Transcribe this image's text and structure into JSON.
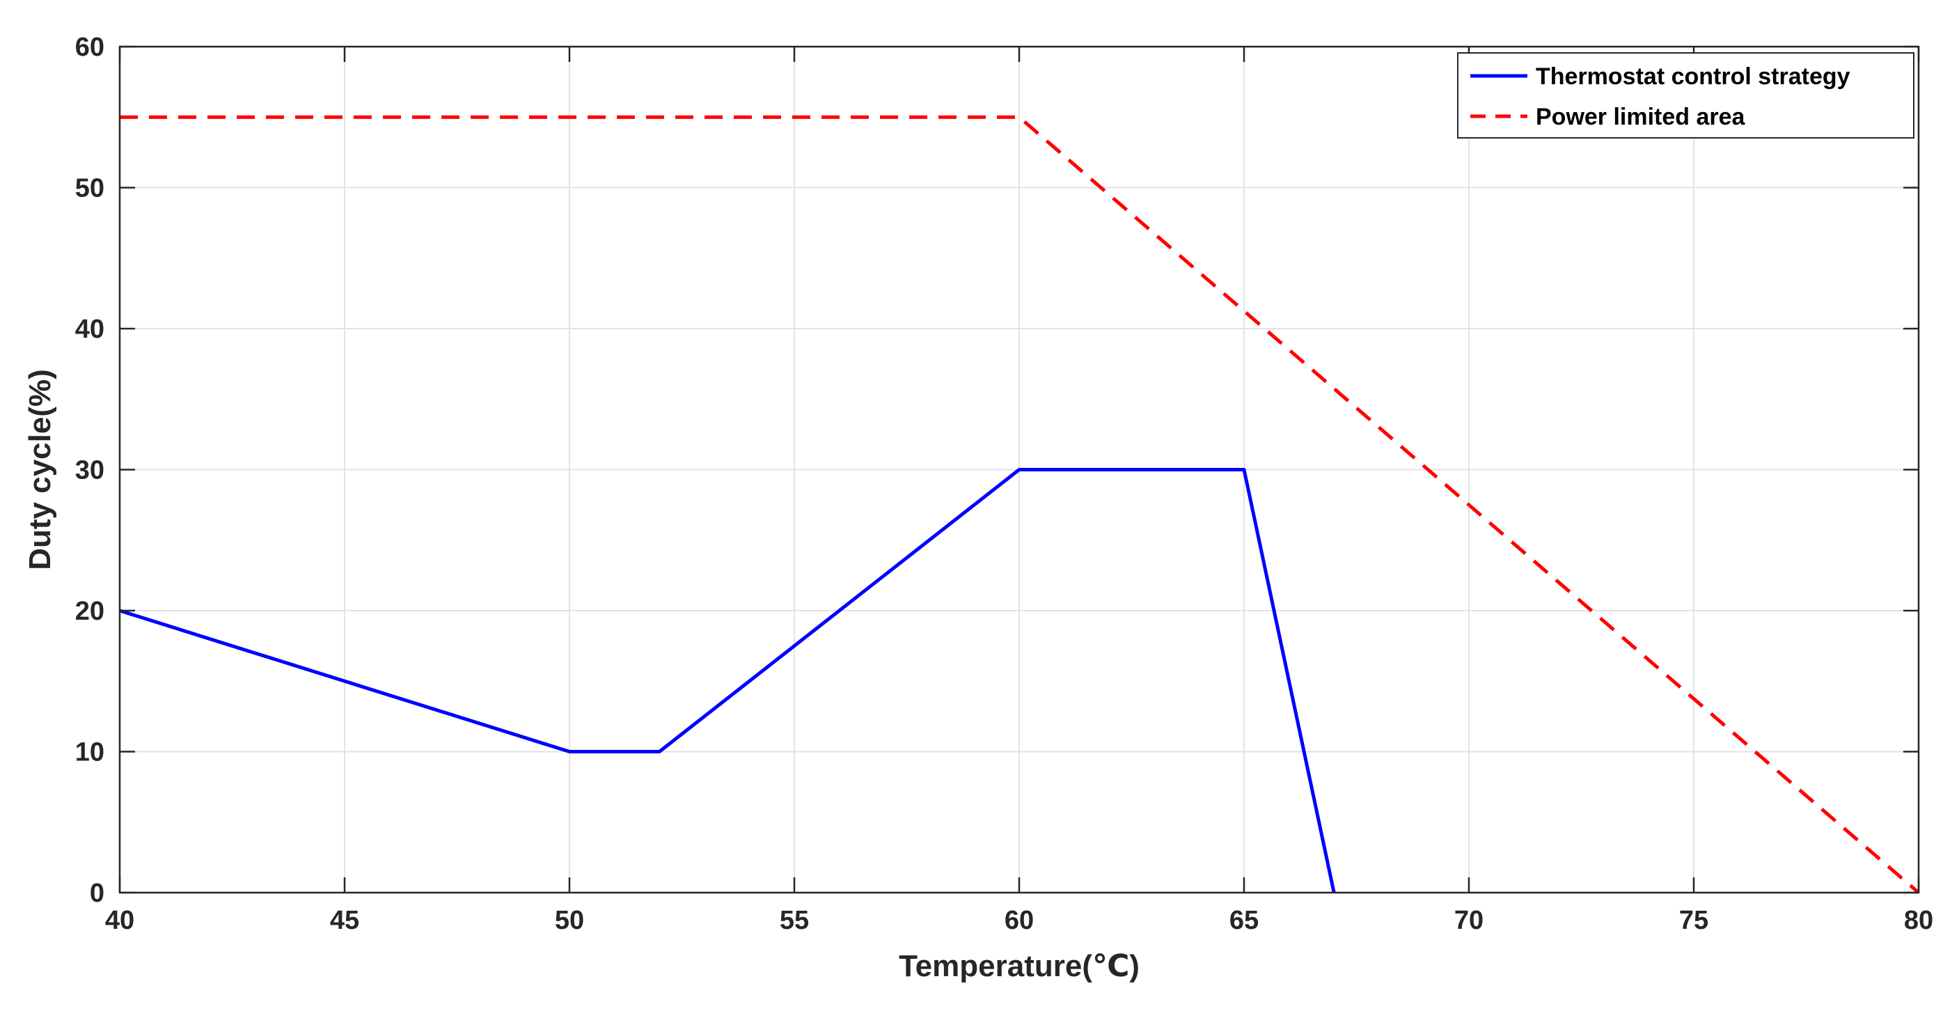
{
  "chart_data": {
    "type": "line",
    "xlabel": "Temperature(℃)",
    "ylabel": "Duty cycle(%)",
    "xlim": [
      40,
      80
    ],
    "ylim": [
      0,
      60
    ],
    "xticks": [
      40,
      45,
      50,
      55,
      60,
      65,
      70,
      75,
      80
    ],
    "yticks": [
      0,
      10,
      20,
      30,
      40,
      50,
      60
    ],
    "grid": true,
    "legend_position": "top-right",
    "series": [
      {
        "name": "Thermostat control strategy",
        "color": "#0000ff",
        "style": "solid",
        "points": [
          [
            40,
            20
          ],
          [
            50,
            10
          ],
          [
            52,
            10
          ],
          [
            60,
            30
          ],
          [
            65,
            30
          ],
          [
            67,
            0
          ]
        ]
      },
      {
        "name": "Power limited area",
        "color": "#ff0000",
        "style": "dashed",
        "points": [
          [
            40,
            55
          ],
          [
            60,
            55
          ],
          [
            80,
            0
          ]
        ]
      }
    ]
  }
}
